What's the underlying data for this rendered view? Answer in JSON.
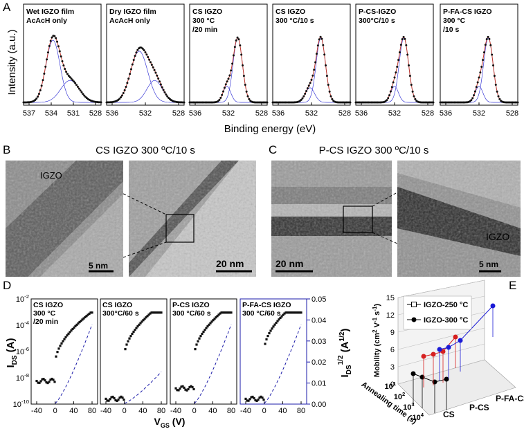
{
  "panels": {
    "a": {
      "label": "A",
      "ylabel": "Intensity (a.u.)",
      "xlabel": "Binding energy (eV)",
      "plots": [
        {
          "title": [
            "Wet IGZO film",
            "AcAcH only"
          ],
          "xticks": [
            "537",
            "534",
            "531",
            "528"
          ]
        },
        {
          "title": [
            "Dry IGZO film",
            "AcAcH only"
          ],
          "xticks": [
            "536",
            "532",
            "528"
          ]
        },
        {
          "title": [
            "CS IGZO",
            "300 °C",
            "/20 min"
          ],
          "xticks": [
            "536",
            "532",
            "528"
          ]
        },
        {
          "title": [
            "CS IGZO",
            "300 °C/10 s"
          ],
          "xticks": [
            "536",
            "532",
            "528"
          ]
        },
        {
          "title": [
            "P-CS-IGZO",
            "300°C/10 s"
          ],
          "xticks": [
            "536",
            "532",
            "528"
          ]
        },
        {
          "title": [
            "P-FA-CS IGZO",
            "300 °C",
            "/10 s"
          ],
          "xticks": [
            "536",
            "532",
            "528"
          ]
        }
      ]
    },
    "b": {
      "label": "B",
      "title": "CS IGZO 300 ºC/10 s",
      "annotations": [
        "IGZO",
        "5 nm",
        "20 nm"
      ]
    },
    "c": {
      "label": "C",
      "title": "P-CS IGZO 300 ºC/10 s",
      "annotations": [
        "20 nm",
        "5 nm",
        "IGZO"
      ]
    },
    "d": {
      "label": "D",
      "ylabel": {
        "main": "I",
        "sub": "DS",
        "unit": " (A)"
      },
      "y2label": {
        "main": "I",
        "sub": "DS",
        "sup": "1/2",
        "unit": " (A",
        "unitsup": "1/2",
        "close": ")"
      },
      "xlabel": {
        "main": "V",
        "sub": "GS",
        "unit": " (V)"
      },
      "yticks": [
        {
          "base": "10",
          "exp": "-2"
        },
        {
          "base": "10",
          "exp": "-4"
        },
        {
          "base": "10",
          "exp": "-6"
        },
        {
          "base": "10",
          "exp": "-8"
        },
        {
          "base": "10",
          "exp": "-10"
        }
      ],
      "y2ticks": [
        "0.05",
        "0.04",
        "0.03",
        "0.02",
        "0.01",
        "0.00"
      ],
      "xticks": [
        "-40",
        "0",
        "40",
        "80"
      ],
      "plots": [
        {
          "title": [
            "CS IGZO",
            "300 °C",
            "/20 min"
          ]
        },
        {
          "title": [
            "CS IGZO",
            "300°C/60 s"
          ]
        },
        {
          "title": [
            "P-CS IGZO",
            "300 °C/60 s"
          ]
        },
        {
          "title": [
            "P-FA-CS IGZO",
            "300 °C/60 s"
          ]
        }
      ]
    },
    "e": {
      "label": "E",
      "legend": [
        "IGZO-250 °C",
        "IGZO-300 °C"
      ],
      "zlabel": {
        "main": "Mobility (cm",
        "s1": "2",
        "m2": " V",
        "s2": "-1",
        "m3": " s",
        "s3": "-1",
        "close": ")"
      },
      "zticks": [
        "0",
        "3",
        "6",
        "9",
        "12",
        "15"
      ],
      "xlabel": "Annealing time (s)",
      "xticks": [
        {
          "base": "10",
          "exp": "1"
        },
        {
          "base": "10",
          "exp": "2"
        },
        {
          "base": "10",
          "exp": "3"
        },
        {
          "base": "10",
          "exp": "4"
        }
      ],
      "categories": [
        "CS",
        "P-CS",
        "P-FA-CS"
      ]
    }
  }
}
